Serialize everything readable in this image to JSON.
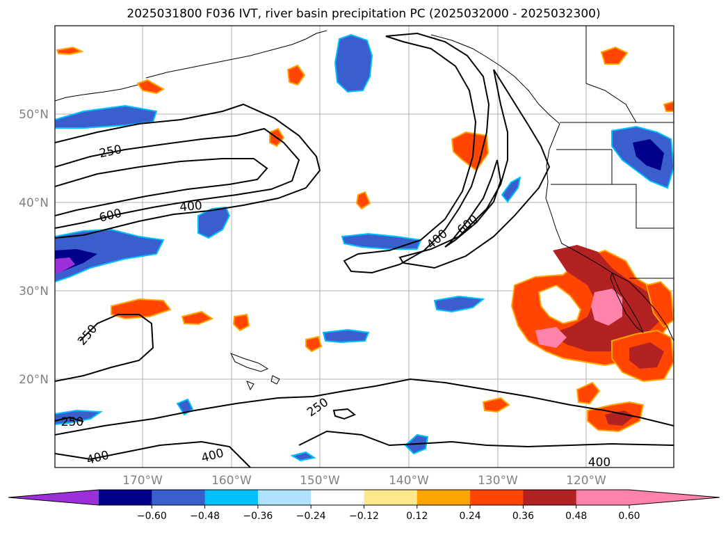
{
  "title": "2025031800 F036 IVT, river basin precipitation PC (2025032000 - 2025032300)",
  "lat_labels": [
    "50°N",
    "40°N",
    "30°N",
    "20°N"
  ],
  "lon_labels": [
    "170°W",
    "160°W",
    "150°W",
    "140°W",
    "130°W",
    "120°W"
  ],
  "contour_labels": {
    "c250_a": "250",
    "c600_a": "600",
    "c400_a": "400",
    "c400_b": "400",
    "c600_b": "600",
    "c250_c": "250",
    "c250_d": "250",
    "c250_e": "250",
    "c400_c": "400",
    "c400_d": "400",
    "c400_e": "400"
  },
  "colorbar": {
    "ticks": [
      "−0.60",
      "−0.48",
      "−0.36",
      "−0.24",
      "−0.12",
      "0.12",
      "0.24",
      "0.36",
      "0.48",
      "0.60"
    ],
    "colors": [
      "#9b30d9",
      "#00008b",
      "#3a5fcd",
      "#00bfff",
      "#b0e2ff",
      "#ffffff",
      "#ffe88c",
      "#ffa500",
      "#ff4500",
      "#b22222",
      "#ff82ab",
      "#ff82ab"
    ]
  },
  "palette": {
    "purple": "#9b30d9",
    "navy": "#00008b",
    "blue": "#3a5fcd",
    "cyan": "#00bfff",
    "lightblue": "#b0e2ff",
    "yellow": "#ffe88c",
    "orange": "#ffa500",
    "redorange": "#ff4500",
    "firebrick": "#b22222",
    "pink": "#ff82ab"
  }
}
